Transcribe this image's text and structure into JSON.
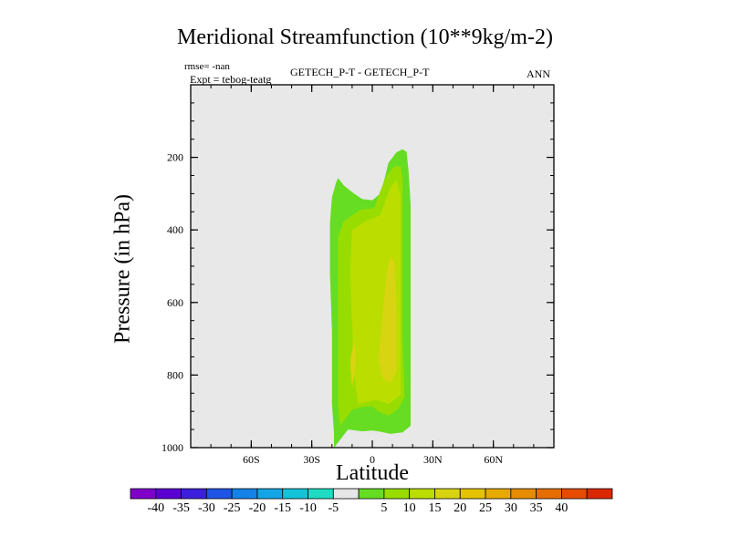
{
  "chart_data": {
    "type": "contour",
    "title": "Meridional Streamfunction (10**9kg/m-2)",
    "rmse_label": "rmse= -nan",
    "expt_label": "Expt = tebog-teatg",
    "subtitle": "GETECH_P-T - GETECH_P-T",
    "season": "ANN",
    "xlabel": "Latitude",
    "ylabel": "Pressure (in hPa)",
    "xlim": [
      -90,
      90
    ],
    "ylim": [
      1000,
      0
    ],
    "x_ticks": [
      {
        "value": -60,
        "label": "60S"
      },
      {
        "value": -30,
        "label": "30S"
      },
      {
        "value": 0,
        "label": "0"
      },
      {
        "value": 30,
        "label": "30N"
      },
      {
        "value": 60,
        "label": "60N"
      }
    ],
    "y_ticks": [
      {
        "value": 200,
        "label": "200"
      },
      {
        "value": 400,
        "label": "400"
      },
      {
        "value": 600,
        "label": "600"
      },
      {
        "value": 800,
        "label": "800"
      },
      {
        "value": 1000,
        "label": "1000"
      }
    ],
    "background_color": "#e8e8e8",
    "contour_regions": [
      {
        "level": "5 to 10",
        "color": "#66dd22",
        "points": [
          [
            -19,
            1000
          ],
          [
            -19,
            960
          ],
          [
            -20,
            880
          ],
          [
            -20,
            680
          ],
          [
            -21,
            520
          ],
          [
            -21,
            380
          ],
          [
            -20,
            310
          ],
          [
            -18,
            270
          ],
          [
            -17,
            257
          ],
          [
            -14,
            278
          ],
          [
            -10,
            296
          ],
          [
            -5,
            315
          ],
          [
            0,
            318
          ],
          [
            4,
            300
          ],
          [
            6,
            260
          ],
          [
            8,
            215
          ],
          [
            12,
            186
          ],
          [
            15,
            178
          ],
          [
            17,
            185
          ],
          [
            18,
            240
          ],
          [
            19,
            330
          ],
          [
            19,
            600
          ],
          [
            19,
            880
          ],
          [
            19,
            940
          ],
          [
            15,
            958
          ],
          [
            9,
            962
          ],
          [
            3,
            955
          ],
          [
            0,
            953
          ],
          [
            -5,
            955
          ],
          [
            -12,
            950
          ]
        ]
      },
      {
        "level": "10 to 15",
        "color": "#99dd00",
        "points": [
          [
            -16,
            940
          ],
          [
            -17,
            880
          ],
          [
            -17,
            640
          ],
          [
            -17,
            420
          ],
          [
            -14,
            375
          ],
          [
            -6,
            345
          ],
          [
            1,
            340
          ],
          [
            4,
            292
          ],
          [
            7,
            250
          ],
          [
            11,
            225
          ],
          [
            14,
            225
          ],
          [
            15,
            260
          ],
          [
            15,
            420
          ],
          [
            15,
            700
          ],
          [
            16,
            860
          ],
          [
            13,
            892
          ],
          [
            8,
            912
          ],
          [
            3,
            900
          ],
          [
            0,
            886
          ],
          [
            -5,
            888
          ],
          [
            -10,
            895
          ]
        ]
      },
      {
        "level": "15 to 20",
        "color": "#bbdd00",
        "points": [
          [
            -7,
            880
          ],
          [
            -9,
            800
          ],
          [
            -11,
            520
          ],
          [
            -10,
            400
          ],
          [
            -3,
            375
          ],
          [
            4,
            360
          ],
          [
            9,
            282
          ],
          [
            12,
            262
          ],
          [
            14,
            310
          ],
          [
            14,
            560
          ],
          [
            14,
            855
          ],
          [
            8,
            880
          ],
          [
            2,
            868
          ]
        ]
      },
      {
        "level": "20 to 25",
        "color": "#d9d411",
        "points": [
          [
            3,
            760
          ],
          [
            5,
            640
          ],
          [
            7,
            520
          ],
          [
            9,
            472
          ],
          [
            11,
            488
          ],
          [
            12,
            620
          ],
          [
            12,
            790
          ],
          [
            9,
            822
          ],
          [
            5,
            808
          ]
        ]
      },
      {
        "level": "20 to 25",
        "color": "#d9d411",
        "points": [
          [
            -9,
            700
          ],
          [
            -8,
            760
          ],
          [
            -10,
            835
          ],
          [
            -11,
            765
          ]
        ]
      }
    ],
    "colorbar": {
      "colors": [
        "#7f00c8",
        "#5a00d2",
        "#3c1edc",
        "#1e55e6",
        "#1482e6",
        "#14a5e6",
        "#14c3d7",
        "#1edcc3",
        "#e6e6e6",
        "#66dd22",
        "#99dd00",
        "#bbdd00",
        "#d9d411",
        "#e6c300",
        "#e6aa00",
        "#e68c00",
        "#e66e00",
        "#e64b00",
        "#dc2800"
      ],
      "labels": [
        "-40",
        "-35",
        "-30",
        "-25",
        "-20",
        "-15",
        "-10",
        "-5",
        "5",
        "10",
        "15",
        "20",
        "25",
        "30",
        "35",
        "40"
      ]
    }
  }
}
